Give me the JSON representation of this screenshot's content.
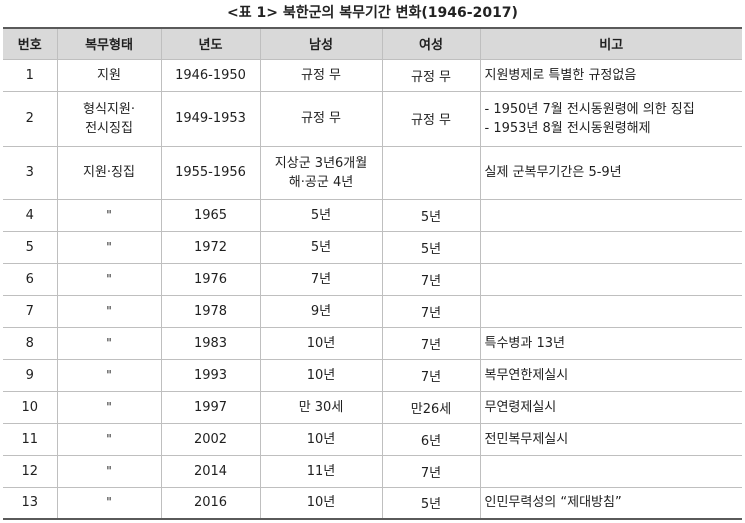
{
  "caption": "<표 1> 북한군의 복무기간 변화(1946-2017)",
  "headers": [
    "번호",
    "복무형태",
    "년도",
    "남성",
    "여성",
    "비고"
  ],
  "rows": [
    {
      "no": "1",
      "type": [
        "지원"
      ],
      "year": "1946-1950",
      "male": [
        "규정 무"
      ],
      "female": "규정 무",
      "note": [
        "지원병제로 특별한 규정없음"
      ]
    },
    {
      "no": "2",
      "type": [
        "형식지원·",
        "전시징집"
      ],
      "year": "1949-1953",
      "male": [
        "규정 무"
      ],
      "female": "규정 무",
      "note": [
        "- 1950년 7월 전시동원령에 의한 징집",
        "- 1953년 8월 전시동원령해제"
      ]
    },
    {
      "no": "3",
      "type": [
        "지원·징집"
      ],
      "year": "1955-1956",
      "male": [
        "지상군 3년6개월",
        "해·공군 4년"
      ],
      "female": "",
      "note": [
        "실제 군복무기간은 5-9년"
      ]
    },
    {
      "no": "4",
      "type": [
        "\""
      ],
      "year": "1965",
      "male": [
        "5년"
      ],
      "female": "5년",
      "note": [
        ""
      ]
    },
    {
      "no": "5",
      "type": [
        "\""
      ],
      "year": "1972",
      "male": [
        "5년"
      ],
      "female": "5년",
      "note": [
        ""
      ]
    },
    {
      "no": "6",
      "type": [
        "\""
      ],
      "year": "1976",
      "male": [
        "7년"
      ],
      "female": "7년",
      "note": [
        ""
      ]
    },
    {
      "no": "7",
      "type": [
        "\""
      ],
      "year": "1978",
      "male": [
        "9년"
      ],
      "female": "7년",
      "note": [
        ""
      ]
    },
    {
      "no": "8",
      "type": [
        "\""
      ],
      "year": "1983",
      "male": [
        "10년"
      ],
      "female": "7년",
      "note": [
        "특수병과 13년"
      ]
    },
    {
      "no": "9",
      "type": [
        "\""
      ],
      "year": "1993",
      "male": [
        "10년"
      ],
      "female": "7년",
      "note": [
        "복무연한제실시"
      ]
    },
    {
      "no": "10",
      "type": [
        "\""
      ],
      "year": "1997",
      "male": [
        "만 30세"
      ],
      "female": "만26세",
      "note": [
        "무연령제실시"
      ]
    },
    {
      "no": "11",
      "type": [
        "\""
      ],
      "year": "2002",
      "male": [
        "10년"
      ],
      "female": "6년",
      "note": [
        "전민복무제실시"
      ]
    },
    {
      "no": "12",
      "type": [
        "\""
      ],
      "year": "2014",
      "male": [
        "11년"
      ],
      "female": "7년",
      "note": [
        ""
      ]
    },
    {
      "no": "13",
      "type": [
        "\""
      ],
      "year": "2016",
      "male": [
        "10년"
      ],
      "female": "5년",
      "note": [
        "인민무력성의 “제대방침”"
      ]
    }
  ]
}
